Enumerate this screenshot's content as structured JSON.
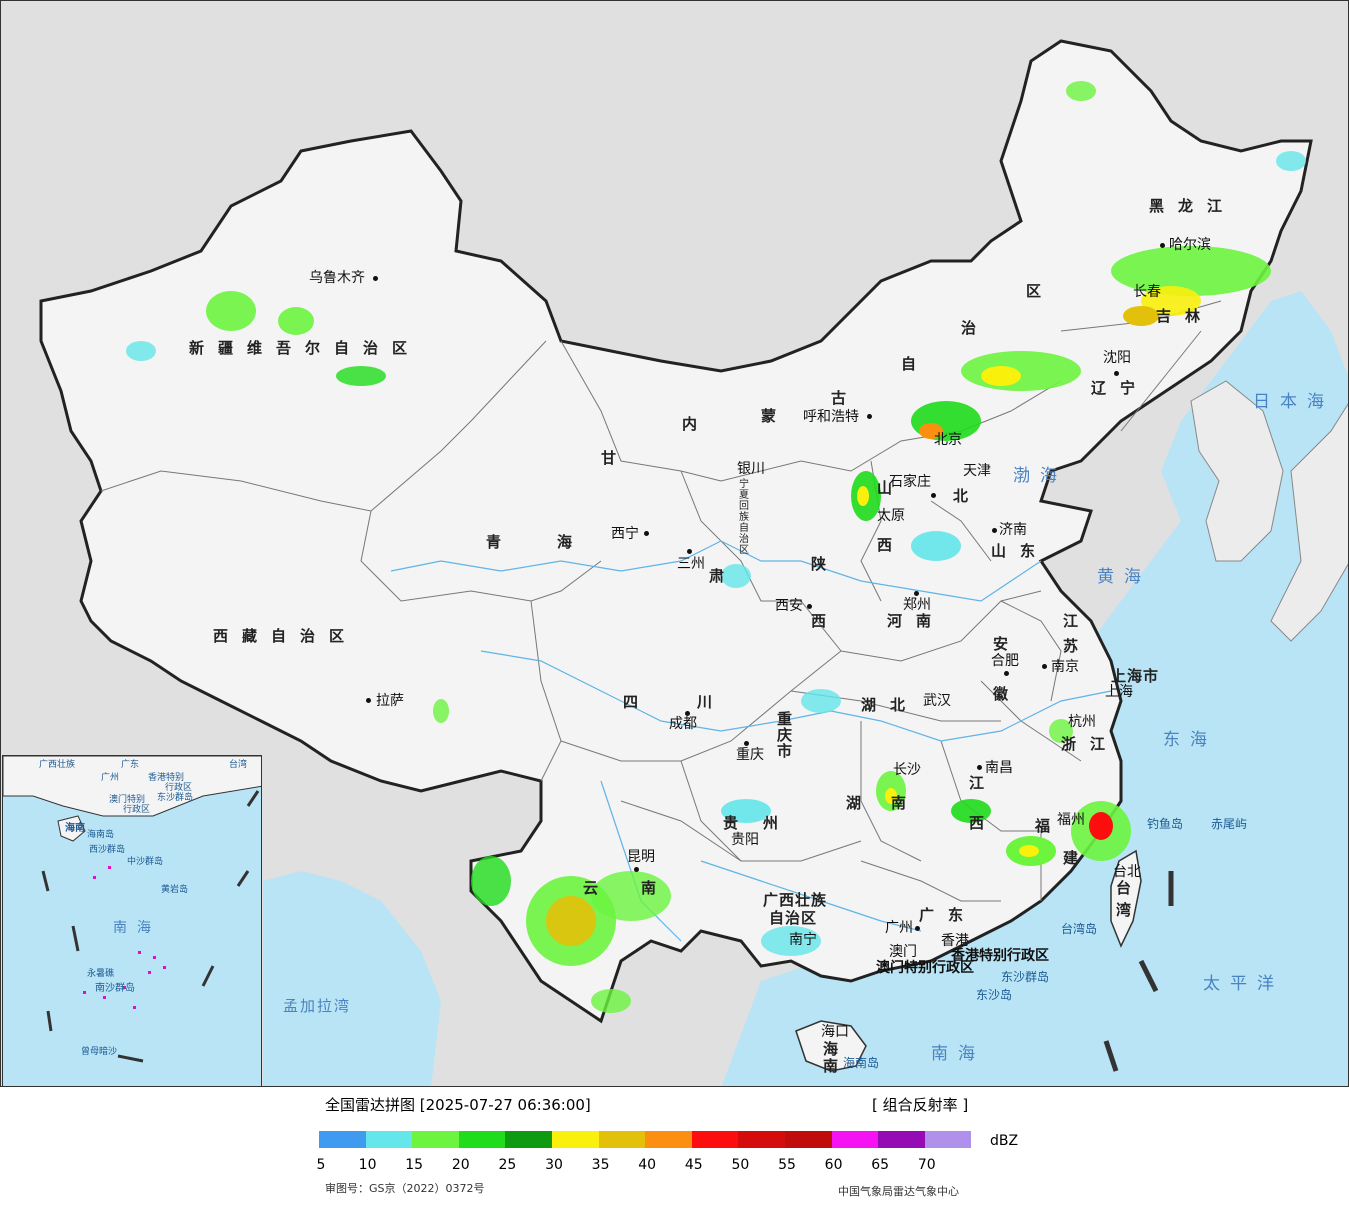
{
  "legend": {
    "title": "全国雷达拼图 [2025-07-27 06:36:00]",
    "product": "[ 组合反射率 ]",
    "unit": "dBZ",
    "ticks": [
      "5",
      "10",
      "15",
      "20",
      "25",
      "30",
      "35",
      "40",
      "45",
      "50",
      "55",
      "60",
      "65",
      "70"
    ],
    "colors": [
      "#3f9bf0",
      "#64e6ea",
      "#6cf43f",
      "#1fdc1c",
      "#0e9b12",
      "#f9f00c",
      "#e3c10a",
      "#fb8f10",
      "#fc0e0e",
      "#d50c0c",
      "#c00c0c",
      "#f512f3",
      "#950cb5",
      "#af91ec"
    ],
    "approval": "审图号：GS京（2022）0372号",
    "source": "中国气象局雷达气象中心"
  },
  "map": {
    "provinces": [
      {
        "key": "xinjiang",
        "text": "新疆维吾尔自治区"
      },
      {
        "key": "xizang",
        "text": "西藏自治区"
      },
      {
        "key": "qinghai1",
        "text": "青"
      },
      {
        "key": "qinghai2",
        "text": "海"
      },
      {
        "key": "gansu",
        "text": "甘"
      },
      {
        "key": "su",
        "text": "肃"
      },
      {
        "key": "nmg1",
        "text": "内"
      },
      {
        "key": "nmg2",
        "text": "蒙"
      },
      {
        "key": "nmg3",
        "text": "古"
      },
      {
        "key": "nmg4",
        "text": "自"
      },
      {
        "key": "nmg5",
        "text": "治"
      },
      {
        "key": "nmg6",
        "text": "区"
      },
      {
        "key": "hlj",
        "text": "黑龙江"
      },
      {
        "key": "jilin",
        "text": "吉林"
      },
      {
        "key": "liaoning",
        "text": "辽宁"
      },
      {
        "key": "hebei",
        "text": "北"
      },
      {
        "key": "shanxi",
        "text": "山"
      },
      {
        "key": "shanxi2",
        "text": "西"
      },
      {
        "key": "shandong",
        "text": "山东"
      },
      {
        "key": "shaanxi1",
        "text": "陕"
      },
      {
        "key": "shaanxi2",
        "text": "西"
      },
      {
        "key": "ningxia",
        "text": "宁夏回族自治区"
      },
      {
        "key": "henan",
        "text": "河南"
      },
      {
        "key": "jiangsu1",
        "text": "江"
      },
      {
        "key": "jiangsu2",
        "text": "苏"
      },
      {
        "key": "anhui1",
        "text": "安"
      },
      {
        "key": "anhui2",
        "text": "徽"
      },
      {
        "key": "shanghai",
        "text": "上海市"
      },
      {
        "key": "zhejiang",
        "text": "浙江"
      },
      {
        "key": "sichuan1",
        "text": "四"
      },
      {
        "key": "sichuan2",
        "text": "川"
      },
      {
        "key": "chongqing",
        "text": "重庆市"
      },
      {
        "key": "hubei",
        "text": "湖北"
      },
      {
        "key": "hunan1",
        "text": "湖"
      },
      {
        "key": "hunan2",
        "text": "南"
      },
      {
        "key": "jiangxi1",
        "text": "江"
      },
      {
        "key": "jiangxi2",
        "text": "西"
      },
      {
        "key": "fujian1",
        "text": "福"
      },
      {
        "key": "fujian2",
        "text": "建"
      },
      {
        "key": "guizhou1",
        "text": "贵"
      },
      {
        "key": "guizhou2",
        "text": "州"
      },
      {
        "key": "yunnan1",
        "text": "云"
      },
      {
        "key": "yunnan2",
        "text": "南"
      },
      {
        "key": "guangxi1",
        "text": "广西壮族"
      },
      {
        "key": "guangxi2",
        "text": "自治区"
      },
      {
        "key": "guangdong",
        "text": "广东"
      },
      {
        "key": "hainan",
        "text": "海南"
      },
      {
        "key": "taiwan1",
        "text": "台"
      },
      {
        "key": "taiwan2",
        "text": "湾"
      },
      {
        "key": "hk",
        "text": "香港特别行政区"
      },
      {
        "key": "macau",
        "text": "澳门特别行政区"
      }
    ],
    "cities": [
      {
        "key": "urumqi",
        "text": "乌鲁木齐"
      },
      {
        "key": "lhasa",
        "text": "拉萨"
      },
      {
        "key": "xining",
        "text": "西宁"
      },
      {
        "key": "lanzhou",
        "text": "三州"
      },
      {
        "key": "yinchuan",
        "text": "银川"
      },
      {
        "key": "hohhot",
        "text": "呼和浩特"
      },
      {
        "key": "beijing",
        "text": "北京"
      },
      {
        "key": "tianjin",
        "text": "天津"
      },
      {
        "key": "shijiazhuang",
        "text": "石家庄"
      },
      {
        "key": "taiyuan",
        "text": "太原"
      },
      {
        "key": "jinan",
        "text": "济南"
      },
      {
        "key": "zhengzhou",
        "text": "郑州"
      },
      {
        "key": "xian",
        "text": "西安"
      },
      {
        "key": "harbin",
        "text": "哈尔滨"
      },
      {
        "key": "changchun",
        "text": "长春"
      },
      {
        "key": "shenyang",
        "text": "沈阳"
      },
      {
        "key": "nanjing",
        "text": "南京"
      },
      {
        "key": "hefei",
        "text": "合肥"
      },
      {
        "key": "shanghai_city",
        "text": "上海"
      },
      {
        "key": "hangzhou",
        "text": "杭州"
      },
      {
        "key": "wuhan",
        "text": "武汉"
      },
      {
        "key": "chengdu",
        "text": "成都"
      },
      {
        "key": "chongqing_city",
        "text": "重庆"
      },
      {
        "key": "changsha",
        "text": "长沙"
      },
      {
        "key": "nanchang",
        "text": "南昌"
      },
      {
        "key": "fuzhou",
        "text": "福州"
      },
      {
        "key": "guiyang",
        "text": "贵阳"
      },
      {
        "key": "kunming",
        "text": "昆明"
      },
      {
        "key": "nanning",
        "text": "南宁"
      },
      {
        "key": "guangzhou",
        "text": "广州"
      },
      {
        "key": "macau_city",
        "text": "澳门"
      },
      {
        "key": "hongkong_city",
        "text": "香港"
      },
      {
        "key": "haikou",
        "text": "海口"
      },
      {
        "key": "taibei",
        "text": "台北"
      }
    ],
    "seas": [
      {
        "key": "japan_sea",
        "text": "日本海"
      },
      {
        "key": "bohai",
        "text": "渤海"
      },
      {
        "key": "yellow_sea",
        "text": "黄海"
      },
      {
        "key": "east_sea",
        "text": "东海"
      },
      {
        "key": "pacific",
        "text": "太平洋"
      },
      {
        "key": "south_sea",
        "text": "南海"
      },
      {
        "key": "bengal",
        "text": "孟加拉湾"
      }
    ],
    "islands": [
      {
        "key": "diaoyu",
        "text": "钓鱼岛"
      },
      {
        "key": "chiwei",
        "text": "赤尾屿"
      },
      {
        "key": "taiwan_island",
        "text": "台湾岛"
      },
      {
        "key": "dongsha_group",
        "text": "东沙群岛"
      },
      {
        "key": "dongsha",
        "text": "东沙岛"
      },
      {
        "key": "hainan_island",
        "text": "海南岛"
      }
    ],
    "inset": {
      "south_sea": "南海",
      "labels": [
        "广西壮族",
        "广州",
        "广东",
        "香港特别",
        "澳门特别",
        "行政区",
        "行政区",
        "海南",
        "海南岛",
        "东沙群岛",
        "西沙群岛",
        "中沙群岛",
        "黄岩岛",
        "永暑礁",
        "南沙群岛",
        "曾母暗沙",
        "台湾"
      ]
    }
  }
}
